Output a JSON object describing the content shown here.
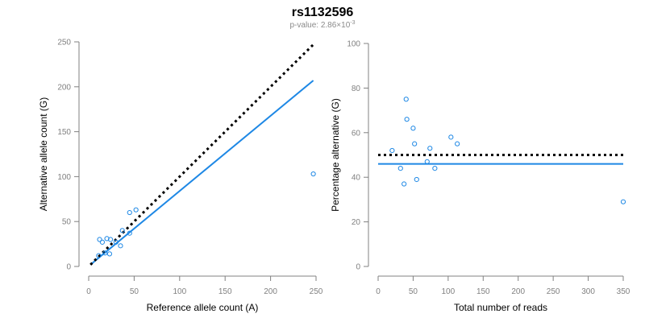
{
  "title": "rs1132596",
  "subtitle": {
    "prefix": "p-value: 2.86×10",
    "exponent": "-3"
  },
  "colors": {
    "points": "#1E88E5",
    "fit": "#1E88E5",
    "reference_line": "#000000",
    "axis": "#808080"
  },
  "chart_data": [
    {
      "type": "scatter",
      "xlabel": "Reference allele count (A)",
      "ylabel": "Alternative allele count (G)",
      "xlim": [
        0,
        250
      ],
      "ylim": [
        0,
        250
      ],
      "xticks": [
        0,
        50,
        100,
        150,
        200,
        250
      ],
      "yticks": [
        0,
        50,
        100,
        150,
        200,
        250
      ],
      "grid": false,
      "points": [
        {
          "x": 11,
          "y": 12
        },
        {
          "x": 12,
          "y": 30
        },
        {
          "x": 15,
          "y": 27
        },
        {
          "x": 18,
          "y": 15
        },
        {
          "x": 20,
          "y": 31
        },
        {
          "x": 23,
          "y": 14
        },
        {
          "x": 24,
          "y": 30
        },
        {
          "x": 30,
          "y": 27
        },
        {
          "x": 35,
          "y": 23
        },
        {
          "x": 37,
          "y": 40
        },
        {
          "x": 45,
          "y": 37
        },
        {
          "x": 45,
          "y": 60
        },
        {
          "x": 52,
          "y": 63
        },
        {
          "x": 247,
          "y": 103
        }
      ],
      "lines": [
        {
          "kind": "fit",
          "style": "solid",
          "x": [
            2,
            247
          ],
          "y": [
            2,
            207
          ]
        },
        {
          "kind": "reference",
          "style": "dotted",
          "x": [
            2,
            247
          ],
          "y": [
            2,
            247
          ]
        }
      ]
    },
    {
      "type": "scatter",
      "xlabel": "Total number of reads",
      "ylabel": "Percentage alternative (G)",
      "xlim": [
        0,
        350
      ],
      "ylim": [
        0,
        100
      ],
      "xticks": [
        0,
        50,
        100,
        150,
        200,
        250,
        300,
        350
      ],
      "yticks": [
        0,
        20,
        40,
        60,
        80,
        100
      ],
      "grid": false,
      "points": [
        {
          "x": 20,
          "y": 52
        },
        {
          "x": 32,
          "y": 44
        },
        {
          "x": 37,
          "y": 37
        },
        {
          "x": 40,
          "y": 75
        },
        {
          "x": 41,
          "y": 66
        },
        {
          "x": 50,
          "y": 62
        },
        {
          "x": 52,
          "y": 55
        },
        {
          "x": 55,
          "y": 39
        },
        {
          "x": 70,
          "y": 47
        },
        {
          "x": 74,
          "y": 53
        },
        {
          "x": 81,
          "y": 44
        },
        {
          "x": 104,
          "y": 58
        },
        {
          "x": 113,
          "y": 55
        },
        {
          "x": 350,
          "y": 29
        }
      ],
      "lines": [
        {
          "kind": "fit",
          "style": "solid",
          "x": [
            0,
            350
          ],
          "y": [
            46,
            46
          ]
        },
        {
          "kind": "reference",
          "style": "dotted",
          "x": [
            0,
            350
          ],
          "y": [
            50,
            50
          ]
        }
      ]
    }
  ]
}
